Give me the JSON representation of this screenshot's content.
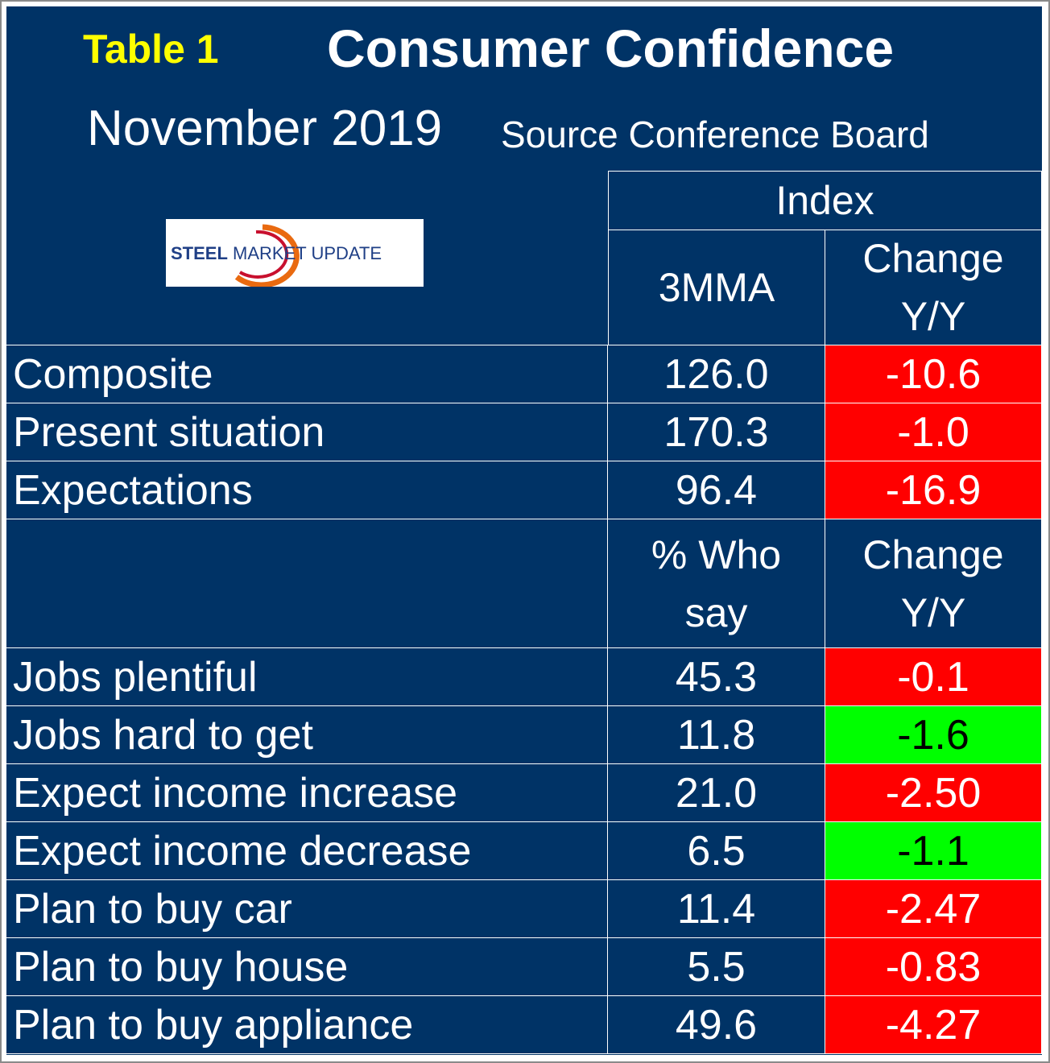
{
  "header": {
    "table_label": "Table 1",
    "title": "Consumer Confidence",
    "month": "November 2019",
    "source": "Source Conference Board"
  },
  "logo": {
    "word1": "STEEL",
    "word2": "MARKET",
    "word3": "UPDATE"
  },
  "columns": {
    "group": "Index",
    "col1": "3MMA",
    "col2_line1": "Change",
    "col2_line2": "Y/Y",
    "col1b_line1": "% Who",
    "col1b_line2": "say",
    "col2b_line1": "Change",
    "col2b_line2": "Y/Y"
  },
  "index_rows": [
    {
      "label": "Composite",
      "value": "126.0",
      "change": "-10.6",
      "status": "red"
    },
    {
      "label": "Present situation",
      "value": "170.3",
      "change": "-1.0",
      "status": "red"
    },
    {
      "label": "Expectations",
      "value": "96.4",
      "change": "-16.9",
      "status": "red"
    }
  ],
  "survey_rows": [
    {
      "label": "Jobs plentiful",
      "value": "45.3",
      "change": "-0.1",
      "status": "red"
    },
    {
      "label": "Jobs hard to get",
      "value": "11.8",
      "change": "-1.6",
      "status": "green"
    },
    {
      "label": "Expect income increase",
      "value": "21.0",
      "change": "-2.50",
      "status": "red"
    },
    {
      "label": "Expect income decrease",
      "value": "6.5",
      "change": "-1.1",
      "status": "green"
    },
    {
      "label": "Plan to buy car",
      "value": "11.4",
      "change": "-2.47",
      "status": "red"
    },
    {
      "label": "Plan to buy house",
      "value": "5.5",
      "change": "-0.83",
      "status": "red"
    },
    {
      "label": "Plan to buy appliance",
      "value": "49.6",
      "change": "-4.27",
      "status": "red"
    }
  ],
  "colors": {
    "background": "#003366",
    "negative": "#ff0000",
    "positive": "#00ff00",
    "label_yellow": "#ffff00"
  }
}
